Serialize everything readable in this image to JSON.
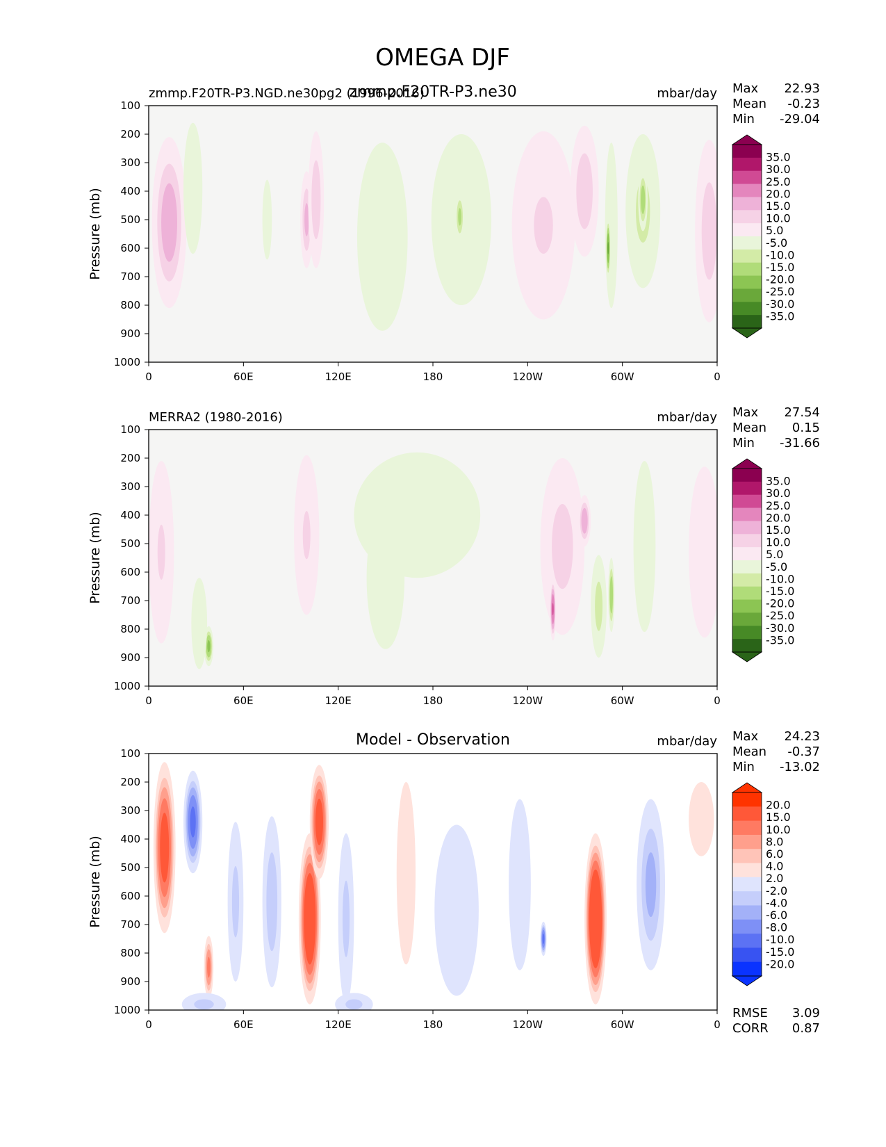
{
  "figure": {
    "title": "OMEGA DJF"
  },
  "colors": {
    "background": "#f5f5f4",
    "diff_background": "#ffffff",
    "pink_levels": [
      "#fbe9f2",
      "#f6d2e6",
      "#eeb2d8",
      "#e486bd",
      "#d04a94",
      "#b0176a",
      "#8b0050"
    ],
    "green_levels": [
      "#e9f5da",
      "#d3eba7",
      "#b0dc79",
      "#8cc553",
      "#6aa83a",
      "#478a26",
      "#2a6418"
    ],
    "red_levels": [
      "#ffe2dc",
      "#ffc4b8",
      "#ff9f8c",
      "#ff7a62",
      "#ff5838",
      "#ff3300"
    ],
    "blue_levels": [
      "#dfe4fd",
      "#c5cefb",
      "#a3b1f8",
      "#7e90f6",
      "#5c72f4",
      "#3853f2",
      "#0a33ff"
    ]
  },
  "chart_data": [
    {
      "type": "heatmap",
      "left_title": "zmmp.F20TR-P3.NGD.ne30pg2 (1996-2016)",
      "center_title": "zmmp.F20TR-P3.ne30",
      "units": "mbar/day",
      "xlabel": "",
      "ylabel": "Pressure (mb)",
      "xlim": [
        0,
        360
      ],
      "ylim": [
        1000,
        100
      ],
      "xtick_labels": [
        "0",
        "60E",
        "120E",
        "180",
        "120W",
        "60W",
        "0"
      ],
      "ytick_labels": [
        "100",
        "200",
        "300",
        "400",
        "500",
        "600",
        "700",
        "800",
        "900",
        "1000"
      ],
      "stats": {
        "max_label": "Max",
        "max": "22.93",
        "mean_label": "Mean",
        "mean": "-0.23",
        "min_label": "Min",
        "min": "-29.04"
      },
      "colorbar": {
        "levels": [
          "35.0",
          "30.0",
          "25.0",
          "20.0",
          "15.0",
          "10.0",
          "5.0",
          "-5.0",
          "-10.0",
          "-15.0",
          "-20.0",
          "-25.0",
          "-30.0",
          "-35.0"
        ]
      },
      "features": [
        {
          "lon": 13,
          "p": 510,
          "dlon": 11,
          "dp": 300,
          "value": 19
        },
        {
          "lon": 28,
          "p": 390,
          "dlon": 6,
          "dp": 230,
          "value": -9
        },
        {
          "lon": 75,
          "p": 500,
          "dlon": 3,
          "dp": 140,
          "value": -6
        },
        {
          "lon": 100,
          "p": 500,
          "dlon": 4,
          "dp": 170,
          "value": 17
        },
        {
          "lon": 106,
          "p": 430,
          "dlon": 5,
          "dp": 240,
          "value": 15
        },
        {
          "lon": 148,
          "p": 560,
          "dlon": 16,
          "dp": 330,
          "value": -6
        },
        {
          "lon": 198,
          "p": 500,
          "dlon": 19,
          "dp": 300,
          "value": -7
        },
        {
          "lon": 197,
          "p": 490,
          "dlon": 3,
          "dp": 90,
          "value": -17
        },
        {
          "lon": 250,
          "p": 520,
          "dlon": 20,
          "dp": 330,
          "value": 11
        },
        {
          "lon": 276,
          "p": 400,
          "dlon": 9,
          "dp": 230,
          "value": 15
        },
        {
          "lon": 293,
          "p": 520,
          "dlon": 4,
          "dp": 290,
          "value": -8
        },
        {
          "lon": 291,
          "p": 600,
          "dlon": 1.5,
          "dp": 110,
          "value": -26
        },
        {
          "lon": 313,
          "p": 470,
          "dlon": 11,
          "dp": 270,
          "value": -12
        },
        {
          "lon": 313,
          "p": 430,
          "dlon": 3,
          "dp": 110,
          "value": -19
        },
        {
          "lon": 355,
          "p": 540,
          "dlon": 9,
          "dp": 320,
          "value": 14
        }
      ]
    },
    {
      "type": "heatmap",
      "left_title": "MERRA2 (1980-2016)",
      "center_title": "",
      "units": "mbar/day",
      "xlabel": "",
      "ylabel": "Pressure (mb)",
      "xlim": [
        0,
        360
      ],
      "ylim": [
        1000,
        100
      ],
      "xtick_labels": [
        "0",
        "60E",
        "120E",
        "180",
        "120W",
        "60W",
        "0"
      ],
      "ytick_labels": [
        "100",
        "200",
        "300",
        "400",
        "500",
        "600",
        "700",
        "800",
        "900",
        "1000"
      ],
      "stats": {
        "max_label": "Max",
        "max": "27.54",
        "mean_label": "Mean",
        "mean": "0.15",
        "min_label": "Min",
        "min": "-31.66"
      },
      "colorbar": {
        "levels": [
          "35.0",
          "30.0",
          "25.0",
          "20.0",
          "15.0",
          "10.0",
          "5.0",
          "-5.0",
          "-10.0",
          "-15.0",
          "-20.0",
          "-25.0",
          "-30.0",
          "-35.0"
        ]
      },
      "features": [
        {
          "lon": 8,
          "p": 530,
          "dlon": 8,
          "dp": 320,
          "value": 11
        },
        {
          "lon": 38,
          "p": 860,
          "dlon": 3,
          "dp": 70,
          "value": -22
        },
        {
          "lon": 32,
          "p": 780,
          "dlon": 5,
          "dp": 160,
          "value": -7
        },
        {
          "lon": 100,
          "p": 470,
          "dlon": 8,
          "dp": 280,
          "value": 11
        },
        {
          "lon": 170,
          "p": 400,
          "dlon": 40,
          "dp": 220,
          "value": -7
        },
        {
          "lon": 150,
          "p": 620,
          "dlon": 12,
          "dp": 250,
          "value": -6
        },
        {
          "lon": 262,
          "p": 510,
          "dlon": 14,
          "dp": 310,
          "value": 13
        },
        {
          "lon": 256,
          "p": 730,
          "dlon": 2,
          "dp": 110,
          "value": 26
        },
        {
          "lon": 276,
          "p": 420,
          "dlon": 4,
          "dp": 90,
          "value": 20
        },
        {
          "lon": 285,
          "p": 720,
          "dlon": 5,
          "dp": 180,
          "value": -13
        },
        {
          "lon": 293,
          "p": 680,
          "dlon": 2,
          "dp": 130,
          "value": -20
        },
        {
          "lon": 314,
          "p": 510,
          "dlon": 7,
          "dp": 300,
          "value": -9
        },
        {
          "lon": 352,
          "p": 530,
          "dlon": 10,
          "dp": 300,
          "value": 9
        }
      ]
    },
    {
      "type": "heatmap",
      "left_title": "",
      "center_title": "Model - Observation",
      "units": "mbar/day",
      "xlabel": "",
      "ylabel": "Pressure (mb)",
      "xlim": [
        0,
        360
      ],
      "ylim": [
        1000,
        100
      ],
      "xtick_labels": [
        "0",
        "60E",
        "120E",
        "180",
        "120W",
        "60W",
        "0"
      ],
      "ytick_labels": [
        "100",
        "200",
        "300",
        "400",
        "500",
        "600",
        "700",
        "800",
        "900",
        "1000"
      ],
      "stats": {
        "max_label": "Max",
        "max": "24.23",
        "mean_label": "Mean",
        "mean": "-0.37",
        "min_label": "Min",
        "min": "-13.02"
      },
      "error_stats": {
        "rmse_label": "RMSE",
        "rmse": "3.09",
        "corr_label": "CORR",
        "corr": "0.87"
      },
      "colorbar": {
        "levels": [
          "20.0",
          "15.0",
          "10.0",
          "8.0",
          "6.0",
          "4.0",
          "2.0",
          "-2.0",
          "-4.0",
          "-6.0",
          "-8.0",
          "-10.0",
          "-15.0",
          "-20.0"
        ]
      },
      "features": [
        {
          "lon": 10,
          "p": 430,
          "dlon": 7,
          "dp": 300,
          "value": 12
        },
        {
          "lon": 28,
          "p": 340,
          "dlon": 6,
          "dp": 180,
          "value": -11
        },
        {
          "lon": 38,
          "p": 850,
          "dlon": 3,
          "dp": 110,
          "value": 9
        },
        {
          "lon": 55,
          "p": 620,
          "dlon": 5,
          "dp": 280,
          "value": -5
        },
        {
          "lon": 78,
          "p": 620,
          "dlon": 6,
          "dp": 300,
          "value": -6
        },
        {
          "lon": 102,
          "p": 680,
          "dlon": 7,
          "dp": 300,
          "value": 14
        },
        {
          "lon": 108,
          "p": 340,
          "dlon": 6,
          "dp": 200,
          "value": 12
        },
        {
          "lon": 125,
          "p": 680,
          "dlon": 5,
          "dp": 300,
          "value": -5
        },
        {
          "lon": 163,
          "p": 520,
          "dlon": 6,
          "dp": 320,
          "value": 3
        },
        {
          "lon": 195,
          "p": 650,
          "dlon": 14,
          "dp": 300,
          "value": -3
        },
        {
          "lon": 235,
          "p": 560,
          "dlon": 7,
          "dp": 300,
          "value": -3
        },
        {
          "lon": 250,
          "p": 750,
          "dlon": 2,
          "dp": 60,
          "value": -11
        },
        {
          "lon": 283,
          "p": 680,
          "dlon": 7,
          "dp": 300,
          "value": 15
        },
        {
          "lon": 318,
          "p": 560,
          "dlon": 9,
          "dp": 300,
          "value": -7
        },
        {
          "lon": 350,
          "p": 330,
          "dlon": 8,
          "dp": 130,
          "value": 3
        },
        {
          "lon": 35,
          "p": 980,
          "dlon": 14,
          "dp": 40,
          "value": -5
        },
        {
          "lon": 130,
          "p": 980,
          "dlon": 12,
          "dp": 40,
          "value": -5
        }
      ]
    }
  ]
}
